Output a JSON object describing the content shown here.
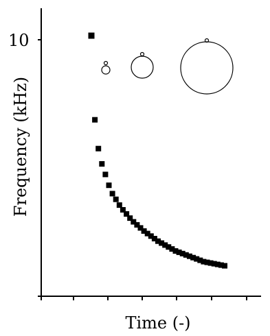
{
  "chart_data": {
    "type": "scatter",
    "title": "",
    "xlabel": "Time (-)",
    "ylabel": "Frequency (kHz)",
    "y_tick_labels": [
      "10"
    ],
    "y_scale": "log",
    "grid": false,
    "legend": "none",
    "series": [
      {
        "marker": "square",
        "color": "#000000",
        "points": [
          {
            "x": 0.7,
            "y": 10.0
          },
          {
            "x": 0.75,
            "y": 7.95
          },
          {
            "x": 0.8,
            "y": 7.35
          },
          {
            "x": 0.85,
            "y": 7.05
          },
          {
            "x": 0.9,
            "y": 6.85
          },
          {
            "x": 0.95,
            "y": 6.65
          },
          {
            "x": 1.0,
            "y": 6.5
          },
          {
            "x": 1.05,
            "y": 6.4
          },
          {
            "x": 1.1,
            "y": 6.3
          },
          {
            "x": 1.15,
            "y": 6.22
          },
          {
            "x": 1.2,
            "y": 6.15
          },
          {
            "x": 1.25,
            "y": 6.08
          },
          {
            "x": 1.3,
            "y": 6.02
          },
          {
            "x": 1.35,
            "y": 5.97
          },
          {
            "x": 1.4,
            "y": 5.92
          },
          {
            "x": 1.45,
            "y": 5.87
          },
          {
            "x": 1.5,
            "y": 5.83
          },
          {
            "x": 1.55,
            "y": 5.79
          },
          {
            "x": 1.6,
            "y": 5.75
          },
          {
            "x": 1.65,
            "y": 5.71
          },
          {
            "x": 1.7,
            "y": 5.68
          },
          {
            "x": 1.75,
            "y": 5.65
          },
          {
            "x": 1.8,
            "y": 5.62
          },
          {
            "x": 1.85,
            "y": 5.59
          },
          {
            "x": 1.9,
            "y": 5.56
          },
          {
            "x": 1.95,
            "y": 5.54
          },
          {
            "x": 2.0,
            "y": 5.52
          },
          {
            "x": 2.05,
            "y": 5.5
          },
          {
            "x": 2.1,
            "y": 5.48
          },
          {
            "x": 2.15,
            "y": 5.46
          },
          {
            "x": 2.2,
            "y": 5.44
          },
          {
            "x": 2.25,
            "y": 5.42
          },
          {
            "x": 2.3,
            "y": 5.4
          },
          {
            "x": 2.35,
            "y": 5.39
          },
          {
            "x": 2.4,
            "y": 5.38
          },
          {
            "x": 2.45,
            "y": 5.37
          },
          {
            "x": 2.5,
            "y": 5.36
          },
          {
            "x": 2.55,
            "y": 5.35
          },
          {
            "x": 2.6,
            "y": 5.34
          }
        ]
      }
    ],
    "annotations": {
      "type": "bubble-growth-sketches",
      "count": 4,
      "sizes": [
        "tiny",
        "small",
        "medium",
        "large"
      ]
    }
  }
}
